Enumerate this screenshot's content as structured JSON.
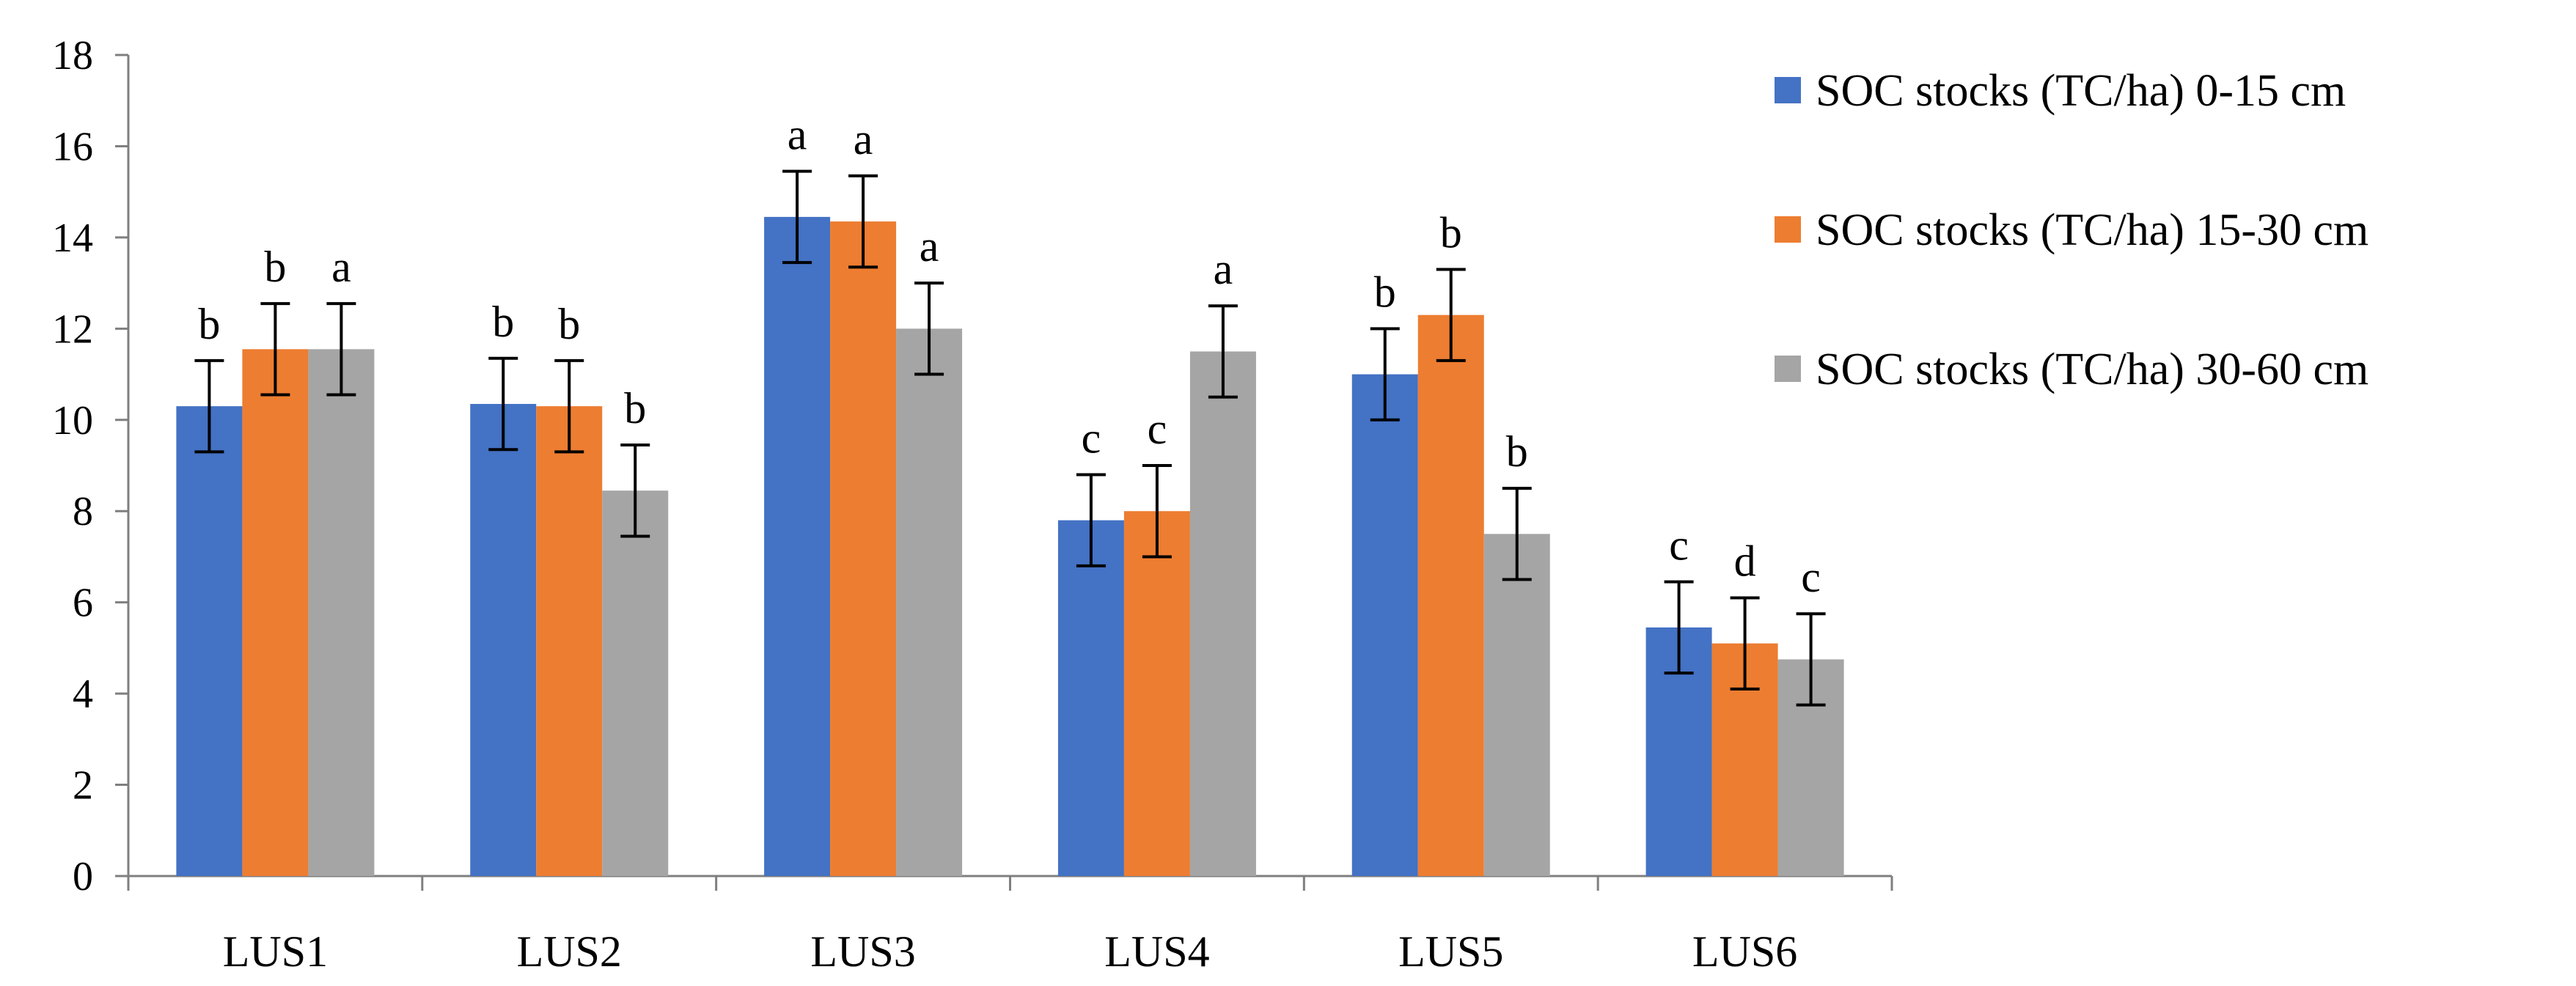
{
  "chart_data": {
    "type": "bar",
    "title": "",
    "xlabel": "",
    "ylabel": "",
    "ylim": [
      0,
      18
    ],
    "yticks": [
      0,
      2,
      4,
      6,
      8,
      10,
      12,
      14,
      16,
      18
    ],
    "grid": false,
    "legend_position": "right",
    "categories": [
      "LUS1",
      "LUS2",
      "LUS3",
      "LUS4",
      "LUS5",
      "LUS6"
    ],
    "error": 1.0,
    "series": [
      {
        "name": "SOC stocks (TC/ha) 0-15 cm",
        "color": "#4472C4",
        "values": [
          10.3,
          10.35,
          14.45,
          7.8,
          11.0,
          5.45
        ],
        "labels": [
          "b",
          "b",
          "a",
          "c",
          "b",
          "c"
        ]
      },
      {
        "name": "SOC stocks (TC/ha) 15-30 cm",
        "color": "#ED7D31",
        "values": [
          11.55,
          10.3,
          14.35,
          8.0,
          12.3,
          5.1
        ],
        "labels": [
          "b",
          "b",
          "a",
          "c",
          "b",
          "d"
        ]
      },
      {
        "name": "SOC stocks (TC/ha) 30-60 cm",
        "color": "#A5A5A5",
        "values": [
          11.55,
          8.45,
          12.0,
          11.5,
          7.5,
          4.75
        ],
        "labels": [
          "a",
          "b",
          "a",
          "a",
          "b",
          "c"
        ]
      }
    ]
  }
}
